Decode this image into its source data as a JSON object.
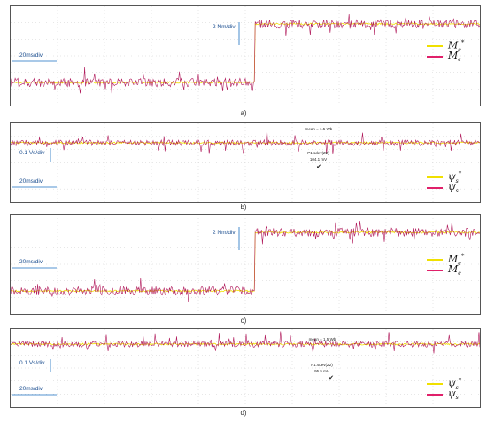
{
  "chart_data": [
    {
      "type": "line",
      "panel": "a)",
      "time_scale_label": "20ms/div",
      "amp_scale_label": "2 Nm/div",
      "legend": [
        {
          "symbol": "M",
          "sub": "e",
          "sup": "*",
          "color": "#f0e000"
        },
        {
          "symbol": "M",
          "sub": "e",
          "sup": "",
          "color": "#e0206a"
        }
      ],
      "step_time_div": 6.5,
      "level_before_div": -1.1,
      "level_after_div": 3.4,
      "noise_div": 0.45
    },
    {
      "type": "line",
      "panel": "b)",
      "time_scale_label": "20ms/div",
      "amp_scale_label": "0.1 Vs/div",
      "measurement": {
        "top": "mean = 1.5 Wb",
        "label": "P1:sdev(Z2)",
        "value": "104.1 mV"
      },
      "legend": [
        {
          "symbol": "ψ",
          "sub": "s",
          "sup": "*",
          "color": "#f0e000"
        },
        {
          "symbol": "ψ",
          "sub": "s",
          "sup": "",
          "color": "#e0206a"
        }
      ],
      "level_div": 0,
      "noise_div": 0.3
    },
    {
      "type": "line",
      "panel": "c)",
      "time_scale_label": "20ms/div",
      "amp_scale_label": "2 Nm/div",
      "legend": [
        {
          "symbol": "M",
          "sub": "e",
          "sup": "*",
          "color": "#f0e000"
        },
        {
          "symbol": "M",
          "sub": "e",
          "sup": "",
          "color": "#e0206a"
        }
      ],
      "step_time_div": 6.5,
      "level_before_div": -1.4,
      "level_after_div": 3.4,
      "noise_div": 0.45
    },
    {
      "type": "line",
      "panel": "d)",
      "time_scale_label": "20ms/div",
      "amp_scale_label": "0.1 Vs/div",
      "measurement": {
        "top": "mean = 1.5 Wb",
        "label": "P1:sdev(Z2)",
        "value": "95.5 mV"
      },
      "legend": [
        {
          "symbol": "ψ",
          "sub": "s",
          "sup": "*",
          "color": "#f0e000"
        },
        {
          "symbol": "ψ",
          "sub": "s",
          "sup": "",
          "color": "#e0206a"
        }
      ],
      "level_div": 0,
      "noise_div": 0.3
    }
  ]
}
